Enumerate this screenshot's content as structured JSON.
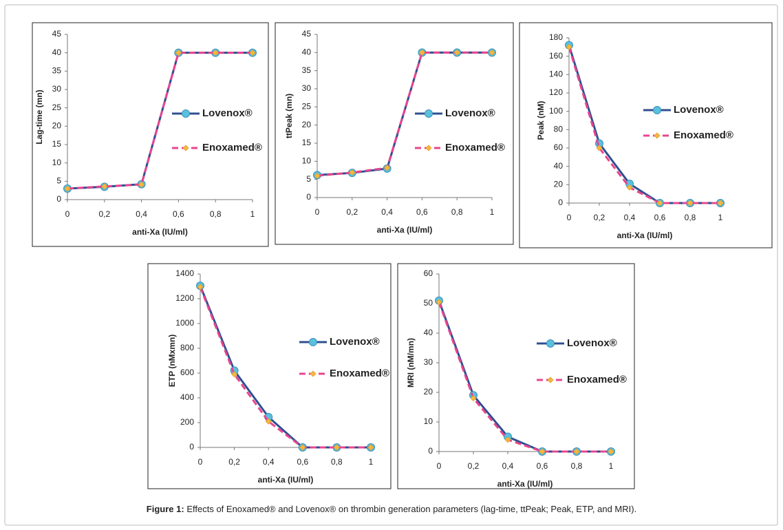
{
  "chart_data": [
    {
      "type": "line",
      "x_label": "anti-Xa (IU/ml)",
      "y_label": "Lag-time (mn)",
      "x": [
        0,
        0.2,
        0.4,
        0.6,
        0.8,
        1
      ],
      "xlim": [
        0,
        1
      ],
      "xticks": [
        0,
        {
          "value": 0.2,
          "label": "0,2"
        },
        {
          "value": 0.4,
          "label": "0,4"
        },
        {
          "value": 0.6,
          "label": "0,6"
        },
        {
          "value": 0.8,
          "label": "0,8"
        },
        1
      ],
      "ylim": [
        0,
        45
      ],
      "yticks": [
        0,
        5,
        10,
        15,
        20,
        25,
        30,
        35,
        40,
        45
      ],
      "series": [
        {
          "name": "Lovenox®",
          "color": "#2f4f8f",
          "marker_color": "#5bc0de",
          "dashed": false,
          "values": [
            3,
            3.5,
            4.2,
            40,
            40,
            40
          ]
        },
        {
          "name": "Enoxamed®",
          "color": "#e8458f",
          "marker_color": "#f5b83d",
          "dashed": true,
          "values": [
            3,
            3.6,
            4.1,
            40,
            40,
            40
          ]
        }
      ]
    },
    {
      "type": "line",
      "x_label": "anti-Xa (IU/ml)",
      "y_label": "ttPeak (mn)",
      "x": [
        0,
        0.2,
        0.4,
        0.6,
        0.8,
        1
      ],
      "xlim": [
        0,
        1
      ],
      "xticks": [
        0,
        {
          "value": 0.2,
          "label": "0,2"
        },
        {
          "value": 0.4,
          "label": "0,4"
        },
        {
          "value": 0.6,
          "label": "0,6"
        },
        {
          "value": 0.8,
          "label": "0,8"
        },
        1
      ],
      "ylim": [
        0,
        45
      ],
      "yticks": [
        0,
        5,
        10,
        15,
        20,
        25,
        30,
        35,
        40,
        45
      ],
      "series": [
        {
          "name": "Lovenox®",
          "color": "#2f4f8f",
          "marker_color": "#5bc0de",
          "dashed": false,
          "values": [
            6.2,
            6.8,
            8,
            40,
            40,
            40
          ]
        },
        {
          "name": "Enoxamed®",
          "color": "#e8458f",
          "marker_color": "#f5b83d",
          "dashed": true,
          "values": [
            6,
            6.9,
            8.2,
            40,
            40,
            40
          ]
        }
      ]
    },
    {
      "type": "line",
      "x_label": "anti-Xa (IU/ml)",
      "y_label": "Peak (nM)",
      "x": [
        0,
        0.2,
        0.4,
        0.6,
        0.8,
        1
      ],
      "xlim": [
        0,
        1
      ],
      "xticks": [
        0,
        {
          "value": 0.2,
          "label": "0,2"
        },
        {
          "value": 0.4,
          "label": "0,4"
        },
        {
          "value": 0.6,
          "label": "0,6"
        },
        {
          "value": 0.8,
          "label": "0,8"
        },
        1
      ],
      "ylim": [
        0,
        180
      ],
      "yticks": [
        0,
        20,
        40,
        60,
        80,
        100,
        120,
        140,
        160,
        180
      ],
      "series": [
        {
          "name": "Lovenox®",
          "color": "#2f4f8f",
          "marker_color": "#5bc0de",
          "dashed": false,
          "values": [
            172,
            65,
            21,
            0,
            0,
            0
          ]
        },
        {
          "name": "Enoxamed®",
          "color": "#e8458f",
          "marker_color": "#f5b83d",
          "dashed": true,
          "values": [
            170,
            60,
            17,
            0,
            0,
            0
          ]
        }
      ]
    },
    {
      "type": "line",
      "x_label": "anti-Xa (IU/ml)",
      "y_label": "ETP (nMxmn)",
      "x": [
        0,
        0.2,
        0.4,
        0.6,
        0.8,
        1
      ],
      "xlim": [
        0,
        1
      ],
      "xticks": [
        0,
        {
          "value": 0.2,
          "label": "0,2"
        },
        {
          "value": 0.4,
          "label": "0,4"
        },
        {
          "value": 0.6,
          "label": "0,6"
        },
        {
          "value": 0.8,
          "label": "0,8"
        },
        1
      ],
      "ylim": [
        0,
        1400
      ],
      "yticks": [
        0,
        200,
        400,
        600,
        800,
        1000,
        1200,
        1400
      ],
      "series": [
        {
          "name": "Lovenox®",
          "color": "#2f4f8f",
          "marker_color": "#5bc0de",
          "dashed": false,
          "values": [
            1305,
            620,
            245,
            0,
            0,
            0
          ]
        },
        {
          "name": "Enoxamed®",
          "color": "#e8458f",
          "marker_color": "#f5b83d",
          "dashed": true,
          "values": [
            1295,
            590,
            210,
            0,
            0,
            0
          ]
        }
      ]
    },
    {
      "type": "line",
      "x_label": "anti-Xa (IU/ml)",
      "y_label": "MRI (nM/mn)",
      "x": [
        0,
        0.2,
        0.4,
        0.6,
        0.8,
        1
      ],
      "xlim": [
        0,
        1
      ],
      "xticks": [
        0,
        {
          "value": 0.2,
          "label": "0,2"
        },
        {
          "value": 0.4,
          "label": "0,4"
        },
        {
          "value": 0.6,
          "label": "0,6"
        },
        {
          "value": 0.8,
          "label": "0,8"
        },
        1
      ],
      "ylim": [
        0,
        60
      ],
      "yticks": [
        0,
        10,
        20,
        30,
        40,
        50,
        60
      ],
      "series": [
        {
          "name": "Lovenox®",
          "color": "#2f4f8f",
          "marker_color": "#5bc0de",
          "dashed": false,
          "values": [
            51,
            19,
            5,
            0,
            0,
            0
          ]
        },
        {
          "name": "Enoxamed®",
          "color": "#e8458f",
          "marker_color": "#f5b83d",
          "dashed": true,
          "values": [
            50.5,
            18,
            4,
            0,
            0,
            0
          ]
        }
      ]
    }
  ],
  "caption": {
    "label": "Figure 1:",
    "text": "Effects of Enoxamed® and Lovenox® on thrombin generation parameters (lag-time, ttPeak; Peak, ETP, and MRI)."
  }
}
